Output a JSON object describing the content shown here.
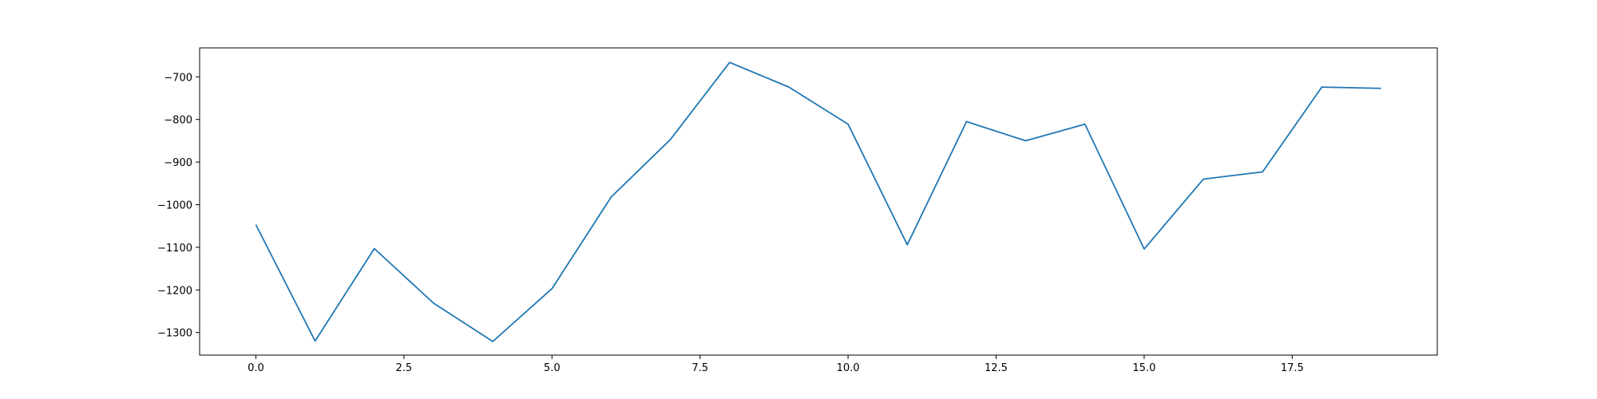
{
  "chart_data": {
    "type": "line",
    "title": "",
    "xlabel": "",
    "ylabel": "",
    "xlim": [
      -0.95,
      19.95
    ],
    "ylim": [
      -1353,
      -632
    ],
    "grid": false,
    "legend": "none",
    "x_ticks": [
      0.0,
      2.5,
      5.0,
      7.5,
      10.0,
      12.5,
      15.0,
      17.5
    ],
    "x_tick_labels": [
      "0.0",
      "2.5",
      "5.0",
      "7.5",
      "10.0",
      "12.5",
      "15.0",
      "17.5"
    ],
    "y_ticks": [
      -1300,
      -1200,
      -1100,
      -1000,
      -900,
      -800,
      -700
    ],
    "y_tick_labels": [
      "−1300",
      "−1200",
      "−1100",
      "−1000",
      "−900",
      "−800",
      "−700"
    ],
    "series": [
      {
        "color": "#1f77b4",
        "x": [
          0,
          1,
          2,
          3,
          4,
          5,
          6,
          7,
          8,
          9,
          10,
          11,
          12,
          13,
          14,
          15,
          16,
          17,
          18,
          19
        ],
        "values": [
          -1047,
          -1320,
          -1103,
          -1231,
          -1321,
          -1197,
          -982,
          -847,
          -666,
          -724,
          -811,
          -1094,
          -805,
          -850,
          -811,
          -1104,
          -940,
          -923,
          -724,
          -727
        ]
      }
    ]
  }
}
